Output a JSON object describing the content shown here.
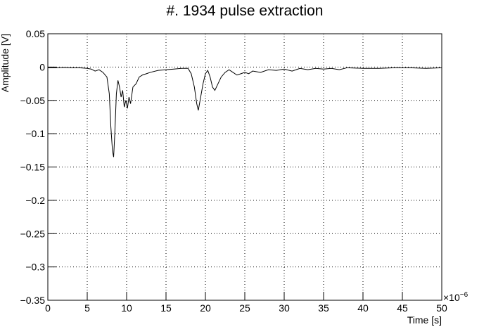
{
  "chart_data": {
    "type": "line",
    "title": "#. 1934 pulse extraction",
    "x_label": "Time [s]",
    "y_label": "Amplitude [V]",
    "x_scale_label": "×10",
    "x_scale_exponent": "−6",
    "color": "#000000",
    "grid": true,
    "xlim": [
      0,
      50
    ],
    "xticks": [
      0,
      5,
      10,
      15,
      20,
      25,
      30,
      35,
      40,
      45,
      50
    ],
    "ylim": [
      -0.35,
      0.05
    ],
    "yticks": [
      0.05,
      0,
      {
        "value": -0.05,
        "label": "−0.05"
      },
      {
        "value": -0.1,
        "label": "−0.1"
      },
      {
        "value": -0.15,
        "label": "−0.15"
      },
      {
        "value": -0.2,
        "label": "−0.2"
      },
      {
        "value": -0.25,
        "label": "−0.25"
      },
      {
        "value": -0.3,
        "label": "−0.3"
      },
      {
        "value": -0.35,
        "label": "−0.35"
      }
    ],
    "x": [
      0,
      1,
      2,
      3,
      4,
      5,
      5.5,
      6,
      6.5,
      7,
      7.5,
      7.8,
      8.0,
      8.2,
      8.35,
      8.5,
      8.7,
      8.9,
      9.1,
      9.3,
      9.5,
      9.7,
      9.9,
      10.1,
      10.3,
      10.5,
      10.8,
      11.2,
      11.6,
      12,
      12.5,
      13,
      14,
      15,
      16,
      17,
      17.8,
      18.2,
      18.6,
      18.9,
      19.1,
      19.4,
      19.7,
      20,
      20.3,
      20.6,
      20.9,
      21.2,
      21.6,
      22,
      22.5,
      23,
      23.5,
      24,
      24.5,
      25,
      25.5,
      26,
      27,
      28,
      29,
      30,
      31,
      32,
      33,
      34,
      35,
      36,
      37,
      38,
      40,
      42,
      44,
      46,
      48,
      50
    ],
    "values": [
      -0.001,
      -0.001,
      -0.0005,
      -0.001,
      -0.001,
      -0.002,
      -0.003,
      -0.006,
      -0.004,
      -0.008,
      -0.015,
      -0.04,
      -0.09,
      -0.125,
      -0.135,
      -0.1,
      -0.04,
      -0.02,
      -0.03,
      -0.045,
      -0.035,
      -0.06,
      -0.05,
      -0.062,
      -0.045,
      -0.055,
      -0.03,
      -0.025,
      -0.015,
      -0.012,
      -0.01,
      -0.008,
      -0.005,
      -0.004,
      -0.003,
      -0.002,
      -0.002,
      -0.01,
      -0.03,
      -0.055,
      -0.065,
      -0.045,
      -0.025,
      -0.01,
      -0.005,
      -0.015,
      -0.03,
      -0.035,
      -0.025,
      -0.015,
      -0.008,
      -0.004,
      -0.008,
      -0.012,
      -0.01,
      -0.008,
      -0.01,
      -0.006,
      -0.008,
      -0.004,
      -0.005,
      -0.003,
      -0.006,
      -0.002,
      -0.004,
      -0.002,
      -0.003,
      -0.002,
      -0.004,
      -0.001,
      -0.002,
      -0.002,
      -0.001,
      -0.001,
      -0.002,
      -0.001
    ]
  }
}
